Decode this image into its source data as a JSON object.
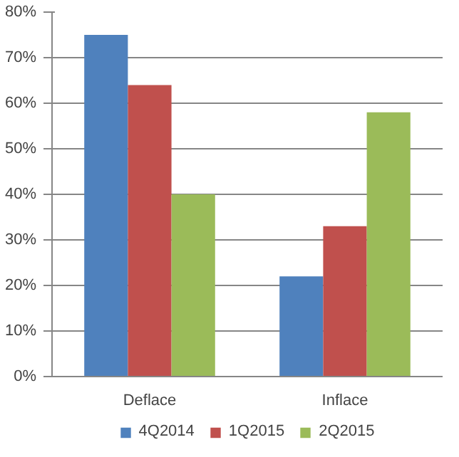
{
  "chart_data": {
    "type": "bar",
    "categories": [
      "Deflace",
      "Inflace"
    ],
    "series": [
      {
        "name": "4Q2014",
        "color": "#4f81bd",
        "values": [
          75,
          22
        ]
      },
      {
        "name": "1Q2015",
        "color": "#c0504d",
        "values": [
          64,
          33
        ]
      },
      {
        "name": "2Q2015",
        "color": "#9bbb59",
        "values": [
          40,
          58
        ]
      }
    ],
    "ylim": [
      0,
      80
    ],
    "yticks": [
      {
        "value": 0,
        "label": "0%"
      },
      {
        "value": 10,
        "label": "10%"
      },
      {
        "value": 20,
        "label": "20%"
      },
      {
        "value": 30,
        "label": "30%"
      },
      {
        "value": 40,
        "label": "40%"
      },
      {
        "value": 50,
        "label": "50%"
      },
      {
        "value": 60,
        "label": "60%"
      },
      {
        "value": 70,
        "label": "70%"
      },
      {
        "value": 80,
        "label": "80%"
      }
    ],
    "grid": "y",
    "legend": "bottom"
  }
}
